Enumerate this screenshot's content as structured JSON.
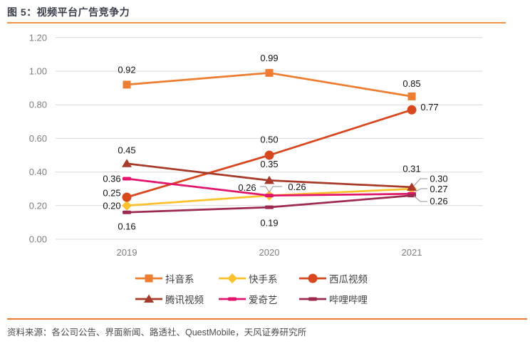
{
  "page": {
    "title": "图 5：视频平台广告竞争力",
    "source": "资料来源：各公司公告、界面新闻、路透社、QuestMobile，天风证券研究所"
  },
  "chart_data": {
    "type": "line",
    "title": "图 5：视频平台广告竞争力",
    "categories": [
      "2019",
      "2020",
      "2021"
    ],
    "ylim": [
      0,
      1.2
    ],
    "yticks": [
      0,
      0.2,
      0.4,
      0.6,
      0.8,
      1.0,
      1.2
    ],
    "ytick_format": "0.00",
    "grid": true,
    "legend_position": "bottom",
    "series": [
      {
        "name": "抖音系",
        "color": "#ED7D31",
        "marker": "square",
        "values": [
          0.92,
          0.99,
          0.85
        ],
        "label_offsets": [
          [
            0,
            -21
          ],
          [
            0,
            -21
          ],
          [
            0,
            -18
          ]
        ]
      },
      {
        "name": "快手系",
        "color": "#FDC12E",
        "marker": "diamond",
        "values": [
          0.2,
          0.26,
          0.3
        ],
        "label_offsets": [
          [
            -21,
            0
          ],
          [
            39,
            -12
          ],
          [
            38,
            -14
          ]
        ]
      },
      {
        "name": "西瓜视频",
        "color": "#D8481F",
        "marker": "circle",
        "values": [
          0.25,
          0.5,
          0.77
        ],
        "label_offsets": [
          [
            -21,
            -6
          ],
          [
            0,
            -22
          ],
          [
            25,
            -4
          ]
        ]
      },
      {
        "name": "腾讯视频",
        "color": "#A83A29",
        "marker": "triangle",
        "values": [
          0.45,
          0.35,
          0.31
        ],
        "label_offsets": [
          [
            0,
            -19
          ],
          [
            0,
            -23
          ],
          [
            0,
            -26
          ]
        ]
      },
      {
        "name": "爱奇艺",
        "color": "#E1156C",
        "marker": "dash",
        "values": [
          0.36,
          0.26,
          0.27
        ],
        "label_offsets": [
          [
            -21,
            0
          ],
          [
            -31,
            -11
          ],
          [
            38,
            -7
          ]
        ]
      },
      {
        "name": "哔哩哔哩",
        "color": "#9D2B4F",
        "marker": "dash",
        "values": [
          0.16,
          0.19,
          0.26
        ],
        "label_offsets": [
          [
            0,
            20
          ],
          [
            0,
            22
          ],
          [
            38,
            8
          ]
        ]
      }
    ],
    "palette": {
      "grid": "#D9D9D9",
      "tick_text": "#7F7F7F",
      "data_label": "#111111",
      "leader": "#A6A6A6",
      "rule_top": "#F0944D",
      "rule_bottom": "#ED7D31",
      "title_text": "#3A3F4A",
      "legend_text": "#404040",
      "source_text": "#4D4D4D"
    }
  }
}
